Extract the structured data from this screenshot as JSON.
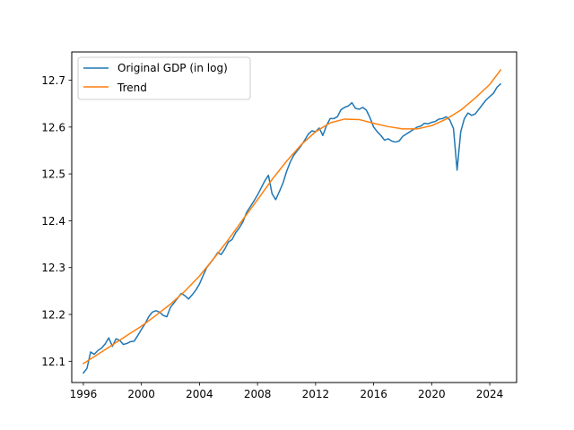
{
  "chart_data": {
    "type": "line",
    "title": "",
    "xlabel": "",
    "ylabel": "",
    "xlim": [
      1995.2,
      2025.85
    ],
    "ylim": [
      12.0547,
      12.7603
    ],
    "x_ticks": [
      1996,
      2000,
      2004,
      2008,
      2012,
      2016,
      2020,
      2024
    ],
    "y_ticks": [
      12.1,
      12.2,
      12.3,
      12.4,
      12.5,
      12.6,
      12.7
    ],
    "legend_position": "top-left",
    "grid": false,
    "series": [
      {
        "name": "Original GDP (in log)",
        "color": "#1f77b4",
        "points": [
          [
            1996.0,
            12.075
          ],
          [
            1996.25,
            12.085
          ],
          [
            1996.5,
            12.12
          ],
          [
            1996.75,
            12.115
          ],
          [
            1997.0,
            12.123
          ],
          [
            1997.25,
            12.128
          ],
          [
            1997.5,
            12.137
          ],
          [
            1997.75,
            12.15
          ],
          [
            1998.0,
            12.132
          ],
          [
            1998.25,
            12.148
          ],
          [
            1998.5,
            12.145
          ],
          [
            1998.75,
            12.136
          ],
          [
            1999.0,
            12.138
          ],
          [
            1999.25,
            12.142
          ],
          [
            1999.5,
            12.143
          ],
          [
            1999.75,
            12.155
          ],
          [
            2000.0,
            12.168
          ],
          [
            2000.25,
            12.18
          ],
          [
            2000.5,
            12.195
          ],
          [
            2000.75,
            12.205
          ],
          [
            2001.0,
            12.208
          ],
          [
            2001.25,
            12.205
          ],
          [
            2001.5,
            12.198
          ],
          [
            2001.75,
            12.195
          ],
          [
            2002.0,
            12.215
          ],
          [
            2002.25,
            12.225
          ],
          [
            2002.5,
            12.235
          ],
          [
            2002.75,
            12.245
          ],
          [
            2003.0,
            12.24
          ],
          [
            2003.25,
            12.233
          ],
          [
            2003.5,
            12.242
          ],
          [
            2003.75,
            12.252
          ],
          [
            2004.0,
            12.265
          ],
          [
            2004.25,
            12.283
          ],
          [
            2004.5,
            12.3
          ],
          [
            2004.75,
            12.31
          ],
          [
            2005.0,
            12.32
          ],
          [
            2005.25,
            12.332
          ],
          [
            2005.5,
            12.328
          ],
          [
            2005.75,
            12.34
          ],
          [
            2006.0,
            12.355
          ],
          [
            2006.25,
            12.36
          ],
          [
            2006.5,
            12.375
          ],
          [
            2006.75,
            12.385
          ],
          [
            2007.0,
            12.398
          ],
          [
            2007.25,
            12.418
          ],
          [
            2007.5,
            12.43
          ],
          [
            2007.75,
            12.442
          ],
          [
            2008.0,
            12.455
          ],
          [
            2008.25,
            12.47
          ],
          [
            2008.5,
            12.485
          ],
          [
            2008.75,
            12.497
          ],
          [
            2009.0,
            12.458
          ],
          [
            2009.25,
            12.445
          ],
          [
            2009.5,
            12.462
          ],
          [
            2009.75,
            12.48
          ],
          [
            2010.0,
            12.505
          ],
          [
            2010.25,
            12.525
          ],
          [
            2010.5,
            12.54
          ],
          [
            2010.75,
            12.55
          ],
          [
            2011.0,
            12.56
          ],
          [
            2011.25,
            12.572
          ],
          [
            2011.5,
            12.585
          ],
          [
            2011.75,
            12.592
          ],
          [
            2012.0,
            12.59
          ],
          [
            2012.25,
            12.598
          ],
          [
            2012.5,
            12.582
          ],
          [
            2012.75,
            12.603
          ],
          [
            2013.0,
            12.618
          ],
          [
            2013.25,
            12.618
          ],
          [
            2013.5,
            12.622
          ],
          [
            2013.75,
            12.637
          ],
          [
            2014.0,
            12.642
          ],
          [
            2014.25,
            12.645
          ],
          [
            2014.5,
            12.652
          ],
          [
            2014.75,
            12.64
          ],
          [
            2015.0,
            12.638
          ],
          [
            2015.25,
            12.642
          ],
          [
            2015.5,
            12.636
          ],
          [
            2015.75,
            12.62
          ],
          [
            2016.0,
            12.6
          ],
          [
            2016.25,
            12.59
          ],
          [
            2016.5,
            12.582
          ],
          [
            2016.75,
            12.572
          ],
          [
            2017.0,
            12.575
          ],
          [
            2017.25,
            12.57
          ],
          [
            2017.5,
            12.568
          ],
          [
            2017.75,
            12.57
          ],
          [
            2018.0,
            12.58
          ],
          [
            2018.25,
            12.585
          ],
          [
            2018.5,
            12.59
          ],
          [
            2018.75,
            12.595
          ],
          [
            2019.0,
            12.6
          ],
          [
            2019.25,
            12.602
          ],
          [
            2019.5,
            12.608
          ],
          [
            2019.75,
            12.607
          ],
          [
            2020.0,
            12.61
          ],
          [
            2020.25,
            12.612
          ],
          [
            2020.5,
            12.617
          ],
          [
            2020.75,
            12.618
          ],
          [
            2021.0,
            12.622
          ],
          [
            2021.25,
            12.615
          ],
          [
            2021.5,
            12.597
          ],
          [
            2021.75,
            12.508
          ],
          [
            2022.0,
            12.59
          ],
          [
            2022.25,
            12.618
          ],
          [
            2022.5,
            12.63
          ],
          [
            2022.75,
            12.625
          ],
          [
            2023.0,
            12.628
          ],
          [
            2023.25,
            12.638
          ],
          [
            2023.5,
            12.648
          ],
          [
            2023.75,
            12.658
          ],
          [
            2024.0,
            12.665
          ],
          [
            2024.25,
            12.672
          ],
          [
            2024.5,
            12.685
          ],
          [
            2024.75,
            12.692
          ]
        ]
      },
      {
        "name": "Trend",
        "color": "#ff7f0e",
        "points": [
          [
            1996.0,
            12.095
          ],
          [
            1997.0,
            12.115
          ],
          [
            1998.0,
            12.135
          ],
          [
            1999.0,
            12.155
          ],
          [
            2000.0,
            12.175
          ],
          [
            2001.0,
            12.198
          ],
          [
            2002.0,
            12.222
          ],
          [
            2003.0,
            12.25
          ],
          [
            2004.0,
            12.282
          ],
          [
            2005.0,
            12.32
          ],
          [
            2006.0,
            12.36
          ],
          [
            2007.0,
            12.403
          ],
          [
            2008.0,
            12.445
          ],
          [
            2009.0,
            12.488
          ],
          [
            2010.0,
            12.527
          ],
          [
            2011.0,
            12.562
          ],
          [
            2012.0,
            12.59
          ],
          [
            2013.0,
            12.609
          ],
          [
            2014.0,
            12.617
          ],
          [
            2015.0,
            12.616
          ],
          [
            2016.0,
            12.608
          ],
          [
            2017.0,
            12.601
          ],
          [
            2018.0,
            12.596
          ],
          [
            2019.0,
            12.596
          ],
          [
            2020.0,
            12.603
          ],
          [
            2021.0,
            12.617
          ],
          [
            2022.0,
            12.636
          ],
          [
            2023.0,
            12.662
          ],
          [
            2024.0,
            12.691
          ],
          [
            2024.75,
            12.722
          ]
        ]
      }
    ]
  }
}
